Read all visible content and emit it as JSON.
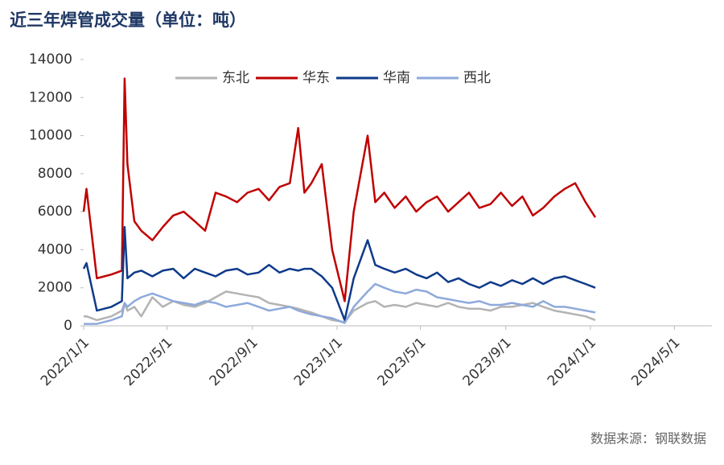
{
  "chart_data": {
    "type": "line",
    "title": "近三年焊管成交量（单位：吨）",
    "source": "数据来源：钢联数据",
    "x": [
      "2022/1/1",
      "2022/1/5",
      "2022/1/20",
      "2022/2/10",
      "2022/2/25",
      "2022/3/1",
      "2022/3/5",
      "2022/3/15",
      "2022/3/25",
      "2022/4/10",
      "2022/4/25",
      "2022/5/10",
      "2022/5/25",
      "2022/6/10",
      "2022/6/25",
      "2022/7/10",
      "2022/7/25",
      "2022/8/10",
      "2022/8/25",
      "2022/9/10",
      "2022/9/25",
      "2022/10/10",
      "2022/10/25",
      "2022/11/6",
      "2022/11/15",
      "2022/11/25",
      "2022/12/10",
      "2022/12/25",
      "2023/1/12",
      "2023/1/25",
      "2023/2/14",
      "2023/2/25",
      "2023/3/10",
      "2023/3/25",
      "2023/4/10",
      "2023/4/25",
      "2023/5/10",
      "2023/5/25",
      "2023/6/10",
      "2023/6/25",
      "2023/7/10",
      "2023/7/25",
      "2023/8/10",
      "2023/8/25",
      "2023/9/10",
      "2023/9/25",
      "2023/10/10",
      "2023/10/25",
      "2023/11/10",
      "2023/11/25",
      "2023/12/10",
      "2023/12/25",
      "2024/1/8"
    ],
    "series": [
      {
        "name": "东北",
        "color": "#b3b3b3",
        "values": [
          500,
          500,
          300,
          500,
          800,
          1200,
          800,
          1000,
          500,
          1500,
          1000,
          1300,
          1100,
          1000,
          1200,
          1500,
          1800,
          1700,
          1600,
          1500,
          1200,
          1100,
          1000,
          900,
          800,
          700,
          500,
          300,
          200,
          800,
          1200,
          1300,
          1000,
          1100,
          1000,
          1200,
          1100,
          1000,
          1200,
          1000,
          900,
          900,
          800,
          1000,
          1000,
          1100,
          1200,
          1000,
          800,
          700,
          600,
          500,
          300
        ]
      },
      {
        "name": "华东",
        "color": "#c00000",
        "values": [
          6000,
          7200,
          2500,
          2700,
          2900,
          13000,
          8500,
          5500,
          5000,
          4500,
          5200,
          5800,
          6000,
          5500,
          5000,
          7000,
          6800,
          6500,
          7000,
          7200,
          6600,
          7300,
          7500,
          10400,
          7000,
          7500,
          8500,
          4000,
          1300,
          6000,
          10000,
          6500,
          7000,
          6200,
          6800,
          6000,
          6500,
          6800,
          6000,
          6500,
          7000,
          6200,
          6400,
          7000,
          6300,
          6800,
          5800,
          6200,
          6800,
          7200,
          7500,
          6500,
          5700
        ]
      },
      {
        "name": "华南",
        "color": "#0e3a8a",
        "values": [
          3000,
          3300,
          800,
          1000,
          1300,
          5200,
          2500,
          2800,
          2900,
          2600,
          2900,
          3000,
          2500,
          3000,
          2800,
          2600,
          2900,
          3000,
          2700,
          2800,
          3200,
          2800,
          3000,
          2900,
          3000,
          3000,
          2600,
          2000,
          300,
          2500,
          4500,
          3200,
          3000,
          2800,
          3000,
          2700,
          2500,
          2800,
          2300,
          2500,
          2200,
          2000,
          2300,
          2100,
          2400,
          2200,
          2500,
          2200,
          2500,
          2600,
          2400,
          2200,
          2000
        ]
      },
      {
        "name": "西北",
        "color": "#8ea9db",
        "values": [
          100,
          100,
          100,
          300,
          500,
          1200,
          1000,
          1300,
          1500,
          1700,
          1500,
          1300,
          1200,
          1100,
          1300,
          1200,
          1000,
          1100,
          1200,
          1000,
          800,
          900,
          1000,
          800,
          700,
          600,
          500,
          400,
          150,
          1000,
          1800,
          2200,
          2000,
          1800,
          1700,
          1900,
          1800,
          1500,
          1400,
          1300,
          1200,
          1300,
          1100,
          1100,
          1200,
          1100,
          1000,
          1300,
          1000,
          1000,
          900,
          800,
          700
        ]
      }
    ],
    "xlim": [
      "2022/1/1",
      "2024/6/24"
    ],
    "xticks": [
      "2022/1/1",
      "2022/5/1",
      "2022/9/1",
      "2023/1/1",
      "2023/5/1",
      "2023/9/1",
      "2024/1/1",
      "2024/5/1"
    ],
    "ylim": [
      0,
      14000
    ],
    "yticks": [
      0,
      2000,
      4000,
      6000,
      8000,
      10000,
      12000,
      14000
    ],
    "legend": "top"
  }
}
